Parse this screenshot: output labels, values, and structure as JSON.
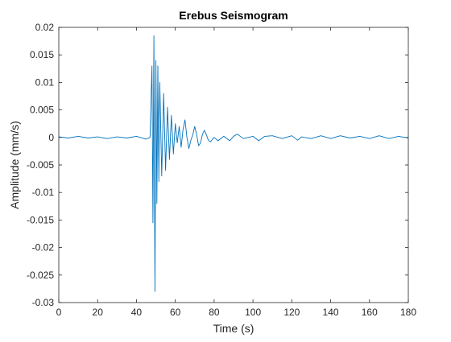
{
  "chart_data": {
    "type": "line",
    "title": "Erebus Seismogram",
    "xlabel": "Time (s)",
    "ylabel": "Amplitude (mm/s)",
    "xlim": [
      0,
      180
    ],
    "ylim": [
      -0.03,
      0.02
    ],
    "x_ticks": [
      0,
      20,
      40,
      60,
      80,
      100,
      120,
      140,
      160,
      180
    ],
    "x_tick_labels": [
      "0",
      "20",
      "40",
      "60",
      "80",
      "100",
      "120",
      "140",
      "160",
      "180"
    ],
    "y_ticks": [
      0.02,
      0.015,
      0.01,
      0.005,
      0,
      -0.005,
      -0.01,
      -0.015,
      -0.02,
      -0.025,
      -0.03
    ],
    "y_tick_labels": [
      "0.02",
      "0.015",
      "0.01",
      "0.005",
      "0",
      "-0.005",
      "-0.01",
      "-0.015",
      "-0.02",
      "-0.025",
      "-0.03"
    ],
    "grid": false,
    "legend": "none",
    "series": [
      {
        "color": "#0072BD",
        "x": [
          0,
          5,
          10,
          15,
          20,
          25,
          30,
          35,
          40,
          45,
          47,
          48,
          48.5,
          49,
          49.5,
          50,
          50.5,
          51,
          51.5,
          52,
          53,
          54,
          55,
          56,
          57,
          58,
          59,
          60,
          61,
          62,
          63,
          64,
          65,
          66,
          67,
          68,
          69,
          70,
          71,
          72,
          73,
          74,
          75,
          76,
          77,
          78,
          80,
          82,
          85,
          88,
          90,
          92,
          95,
          100,
          103,
          106,
          110,
          115,
          120,
          123,
          125,
          130,
          135,
          140,
          145,
          150,
          155,
          160,
          165,
          170,
          175,
          180
        ],
        "y": [
          0.0001,
          -0.0001,
          0.0002,
          -0.0001,
          0.0001,
          -0.0002,
          0.0001,
          -0.0001,
          0.0002,
          -0.0003,
          0.0,
          0.013,
          -0.0155,
          0.0185,
          -0.028,
          0.014,
          -0.012,
          0.013,
          -0.008,
          0.01,
          -0.007,
          0.008,
          -0.006,
          0.0055,
          -0.004,
          0.004,
          -0.003,
          0.0025,
          -0.001,
          0.002,
          -0.0018,
          0.0015,
          0.0032,
          0.0,
          -0.002,
          -0.0005,
          0.0005,
          0.002,
          0.0005,
          -0.0015,
          -0.001,
          0.0006,
          0.0013,
          0.0005,
          -0.0005,
          -0.0008,
          0.0,
          -0.0006,
          0.0002,
          -0.0006,
          0.0002,
          0.0006,
          -0.0002,
          0.0002,
          -0.0006,
          0.0002,
          0.0003,
          -0.0002,
          0.0003,
          -0.0005,
          0.0001,
          -0.0002,
          0.0003,
          -0.0002,
          0.0003,
          -0.0001,
          0.0002,
          -0.0002,
          0.0003,
          -0.0002,
          0.0002,
          -0.0001
        ]
      }
    ]
  }
}
